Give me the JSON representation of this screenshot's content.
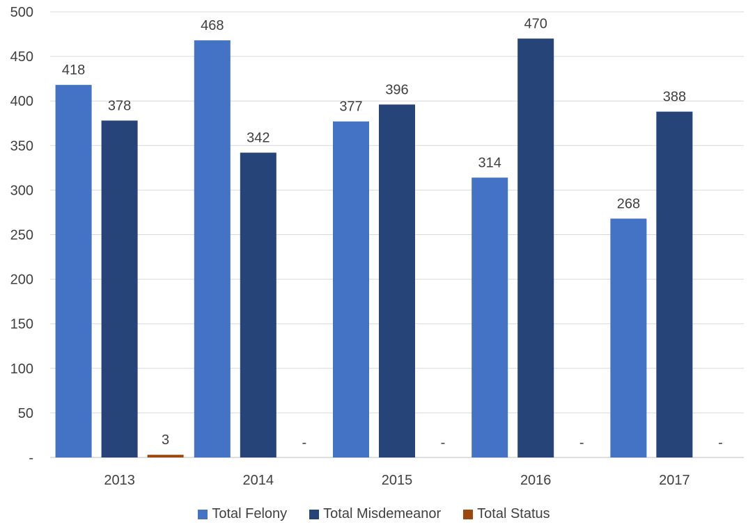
{
  "chart_data": {
    "type": "bar",
    "categories": [
      "2013",
      "2014",
      "2015",
      "2016",
      "2017"
    ],
    "series": [
      {
        "name": "Total Felony",
        "values": [
          418,
          468,
          377,
          314,
          268
        ],
        "labels": [
          "418",
          "468",
          "377",
          "314",
          "268"
        ],
        "color": "#4472C4"
      },
      {
        "name": "Total Misdemeanor",
        "values": [
          378,
          342,
          396,
          470,
          388
        ],
        "labels": [
          "378",
          "342",
          "396",
          "470",
          "388"
        ],
        "color": "#264478"
      },
      {
        "name": "Total Status",
        "values": [
          3,
          0,
          0,
          0,
          0
        ],
        "labels": [
          "3",
          "-",
          "-",
          "-",
          "-"
        ],
        "color": "#9E480E"
      }
    ],
    "yticks": [
      {
        "value": 0,
        "label": "-"
      },
      {
        "value": 50,
        "label": "50"
      },
      {
        "value": 100,
        "label": "100"
      },
      {
        "value": 150,
        "label": "150"
      },
      {
        "value": 200,
        "label": "200"
      },
      {
        "value": 250,
        "label": "250"
      },
      {
        "value": 300,
        "label": "300"
      },
      {
        "value": 350,
        "label": "350"
      },
      {
        "value": 400,
        "label": "400"
      },
      {
        "value": 450,
        "label": "450"
      },
      {
        "value": 500,
        "label": "500"
      }
    ],
    "ylim": [
      0,
      500
    ],
    "grid": true,
    "legend_position": "bottom",
    "title": "",
    "xlabel": "",
    "ylabel": ""
  }
}
